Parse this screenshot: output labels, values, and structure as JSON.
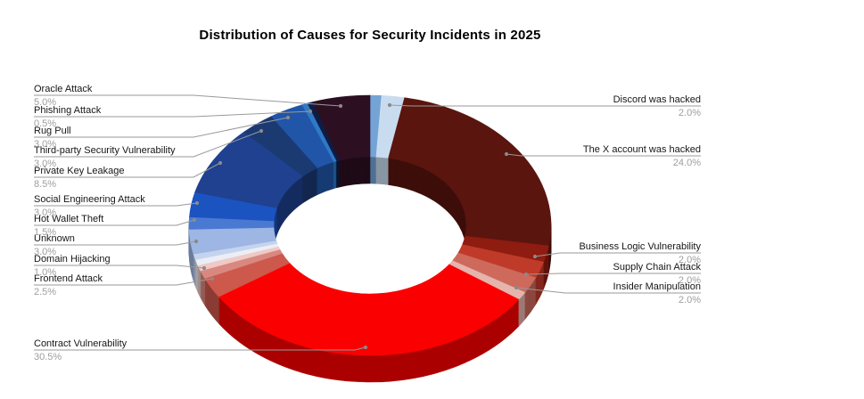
{
  "title": "Distribution of Causes for Security Incidents in 2025",
  "chart_data": {
    "type": "pie",
    "subtype": "3d-donut",
    "title": "Distribution of Causes for Security Incidents in 2025",
    "unit": "%",
    "start_angle": "top",
    "direction": "clockwise",
    "legend_position": "none (leader-line labels around chart)",
    "background": "#ffffff",
    "colors": {
      "title_text": "#000000",
      "label_text": "#161616",
      "percent_text": "#9e9e9e",
      "leader_line": "#999999",
      "leader_dot": "#8a8a8a"
    },
    "slices": [
      {
        "label": "",
        "value": 1.0,
        "pct_label": "",
        "color": "#74a4d6",
        "unlabeled": true
      },
      {
        "label": "Discord was hacked",
        "value": 2.0,
        "pct_label": "2.0%",
        "color": "#c9dcef",
        "side": "right"
      },
      {
        "label": "The X account was hacked",
        "value": 24.0,
        "pct_label": "24.0%",
        "color": "#5a150f",
        "side": "right"
      },
      {
        "label": "Business Logic Vulnerability",
        "value": 2.0,
        "pct_label": "2.0%",
        "color": "#8e1c10",
        "side": "right"
      },
      {
        "label": "Supply Chain Attack",
        "value": 2.0,
        "pct_label": "2.0%",
        "color": "#c03a2a",
        "side": "right"
      },
      {
        "label": "Insider Manipulation",
        "value": 2.0,
        "pct_label": "2.0%",
        "color": "#cd6a5c",
        "side": "right"
      },
      {
        "label": "",
        "value": 1.0,
        "pct_label": "",
        "color": "#e5b4ac",
        "unlabeled": true
      },
      {
        "label": "Contract Vulnerability",
        "value": 30.5,
        "pct_label": "30.5%",
        "color": "#fb0000",
        "side": "left"
      },
      {
        "label": "Frontend Attack",
        "value": 2.5,
        "pct_label": "2.5%",
        "color": "#cd584c",
        "side": "left"
      },
      {
        "label": "Domain Hijacking",
        "value": 1.0,
        "pct_label": "1.0%",
        "color": "#d98880",
        "side": "left"
      },
      {
        "label": "",
        "value": 0.7,
        "pct_label": "",
        "color": "#eec9c6",
        "unlabeled": true
      },
      {
        "label": "",
        "value": 0.7,
        "pct_label": "",
        "color": "#ebeef4",
        "unlabeled": true
      },
      {
        "label": "",
        "value": 0.7,
        "pct_label": "",
        "color": "#c5d3ee",
        "unlabeled": true
      },
      {
        "label": "Unknown",
        "value": 3.0,
        "pct_label": "3.0%",
        "color": "#9db6e3",
        "side": "left"
      },
      {
        "label": "Hot Wallet Theft",
        "value": 1.5,
        "pct_label": "1.5%",
        "color": "#4a79d2",
        "side": "left"
      },
      {
        "label": "Social Engineering Attack",
        "value": 3.0,
        "pct_label": "3.0%",
        "color": "#1b53c0",
        "side": "left"
      },
      {
        "label": "Private Key Leakage",
        "value": 8.5,
        "pct_label": "8.5%",
        "color": "#1f418f",
        "side": "left"
      },
      {
        "label": "Third-party Security Vulnerability",
        "value": 3.0,
        "pct_label": "3.0%",
        "color": "#1b3a72",
        "side": "left"
      },
      {
        "label": "Rug Pull",
        "value": 3.0,
        "pct_label": "3.0%",
        "color": "#2155a8",
        "side": "left"
      },
      {
        "label": "",
        "value": 0.5,
        "pct_label": "",
        "color": "#2e79c8",
        "unlabeled": true
      },
      {
        "label": "Phishing Attack",
        "value": 0.5,
        "pct_label": "0.5%",
        "color": "#0e1d45",
        "side": "left"
      },
      {
        "label": "Oracle Attack",
        "value": 5.0,
        "pct_label": "5.0%",
        "color": "#2c1022",
        "side": "left"
      }
    ]
  }
}
